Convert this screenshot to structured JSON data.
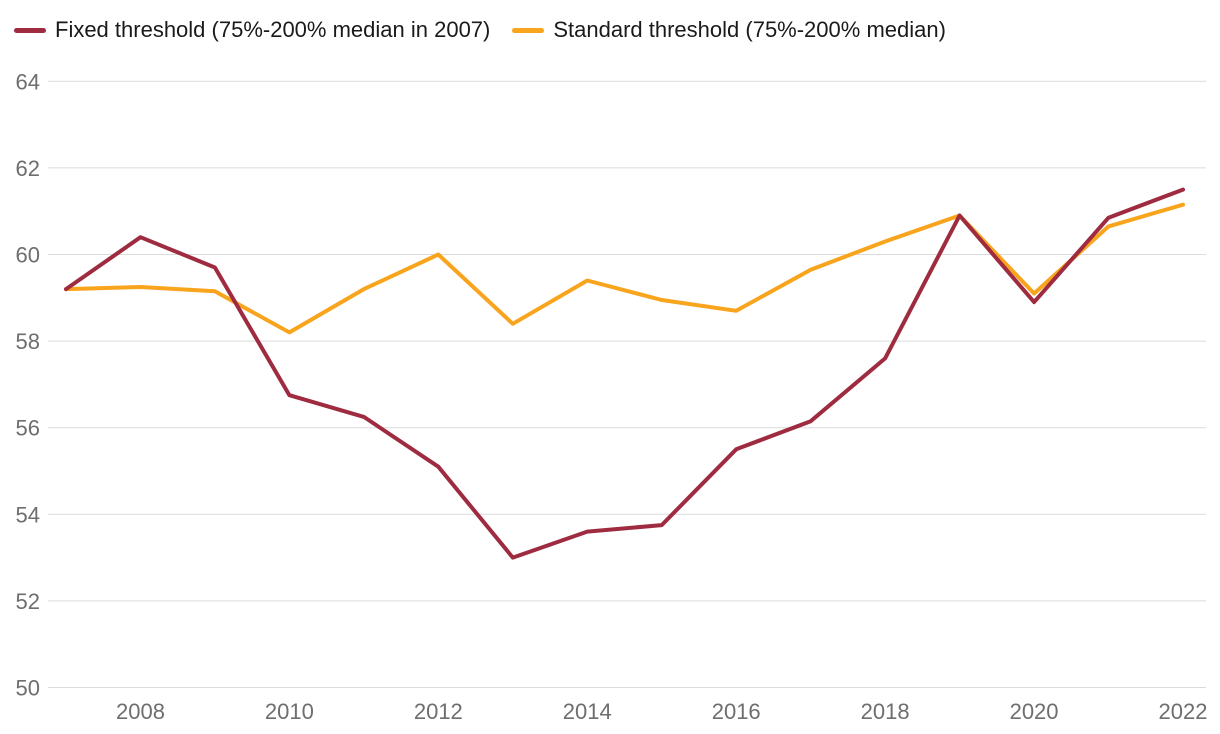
{
  "chart_data": {
    "type": "line",
    "x": [
      2007,
      2008,
      2009,
      2010,
      2011,
      2012,
      2013,
      2014,
      2015,
      2016,
      2017,
      2018,
      2019,
      2020,
      2021,
      2022
    ],
    "series": [
      {
        "name": "Fixed threshold (75%-200% median in 2007)",
        "color": "#9E2B3F",
        "values": [
          59.2,
          60.4,
          59.7,
          56.75,
          56.25,
          55.1,
          53.0,
          53.6,
          53.75,
          55.5,
          56.15,
          57.6,
          60.9,
          58.9,
          60.85,
          61.5
        ]
      },
      {
        "name": "Standard threshold (75%-200% median)",
        "color": "#F8A41D",
        "values": [
          59.2,
          59.25,
          59.15,
          58.2,
          59.2,
          60.0,
          58.4,
          59.4,
          58.95,
          58.7,
          59.65,
          60.3,
          60.9,
          59.1,
          60.65,
          61.15
        ]
      }
    ],
    "title": "",
    "xlabel": "",
    "ylabel": "",
    "ylim": [
      50,
      64
    ],
    "xlim": [
      2007,
      2022
    ],
    "y_ticks": [
      "50",
      "52",
      "54",
      "56",
      "58",
      "60",
      "62",
      "64"
    ],
    "x_ticks": [
      "2008",
      "2010",
      "2012",
      "2014",
      "2016",
      "2018",
      "2020",
      "2022"
    ],
    "grid": "horizontal",
    "legend_position": "top-left",
    "colors": {
      "background": "#FFFFFF",
      "gridline": "#DBDBDB",
      "tick_text": "#6E6E6E",
      "legend_text": "#1A1A1A"
    }
  },
  "legend": {
    "items": [
      {
        "label": "Fixed threshold (75%-200% median in 2007)"
      },
      {
        "label": "Standard threshold (75%-200% median)"
      }
    ]
  }
}
